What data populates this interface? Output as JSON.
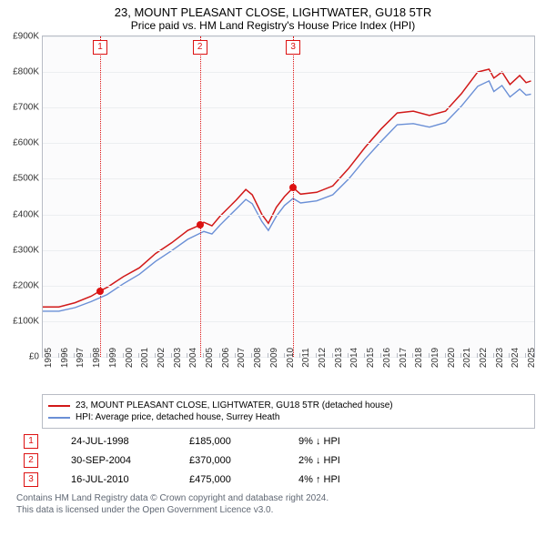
{
  "title": "23, MOUNT PLEASANT CLOSE, LIGHTWATER, GU18 5TR",
  "subtitle": "Price paid vs. HM Land Registry's House Price Index (HPI)",
  "chart": {
    "type": "line",
    "xlim": [
      1995,
      2025.5
    ],
    "ylim": [
      0,
      900000
    ],
    "ytick_step": 100000,
    "ytick_fmt_prefix": "£",
    "ytick_fmt_suffix": "K",
    "ytick_zero": "£0",
    "xticks": [
      1995,
      1996,
      1997,
      1998,
      1999,
      2000,
      2001,
      2002,
      2003,
      2004,
      2005,
      2006,
      2007,
      2008,
      2009,
      2010,
      2011,
      2012,
      2013,
      2014,
      2015,
      2016,
      2017,
      2018,
      2019,
      2020,
      2021,
      2022,
      2023,
      2024,
      2025
    ],
    "background_color": "#fbfbfc",
    "grid_color": "#eceef1",
    "border_color": "#b8bcc5",
    "series": [
      {
        "label": "23, MOUNT PLEASANT CLOSE, LIGHTWATER, GU18 5TR (detached house)",
        "color": "#d11919",
        "width": 1.5,
        "data": [
          [
            1995.0,
            140000
          ],
          [
            1996.0,
            140000
          ],
          [
            1997.0,
            152000
          ],
          [
            1998.0,
            170000
          ],
          [
            1998.56,
            185000
          ],
          [
            1999.0,
            195000
          ],
          [
            2000.0,
            225000
          ],
          [
            2001.0,
            250000
          ],
          [
            2002.0,
            290000
          ],
          [
            2003.0,
            320000
          ],
          [
            2004.0,
            355000
          ],
          [
            2004.75,
            370000
          ],
          [
            2005.0,
            378000
          ],
          [
            2005.5,
            368000
          ],
          [
            2006.0,
            395000
          ],
          [
            2007.0,
            440000
          ],
          [
            2007.6,
            470000
          ],
          [
            2008.0,
            455000
          ],
          [
            2008.6,
            400000
          ],
          [
            2009.0,
            375000
          ],
          [
            2009.5,
            420000
          ],
          [
            2010.0,
            450000
          ],
          [
            2010.54,
            475000
          ],
          [
            2011.0,
            457000
          ],
          [
            2012.0,
            462000
          ],
          [
            2013.0,
            480000
          ],
          [
            2014.0,
            530000
          ],
          [
            2015.0,
            588000
          ],
          [
            2016.0,
            640000
          ],
          [
            2017.0,
            685000
          ],
          [
            2018.0,
            690000
          ],
          [
            2019.0,
            678000
          ],
          [
            2020.0,
            690000
          ],
          [
            2021.0,
            740000
          ],
          [
            2022.0,
            800000
          ],
          [
            2022.7,
            808000
          ],
          [
            2023.0,
            783000
          ],
          [
            2023.5,
            800000
          ],
          [
            2024.0,
            765000
          ],
          [
            2024.6,
            790000
          ],
          [
            2025.0,
            770000
          ],
          [
            2025.3,
            775000
          ]
        ]
      },
      {
        "label": "HPI: Average price, detached house, Surrey Heath",
        "color": "#6a8fd6",
        "width": 1.4,
        "data": [
          [
            1995.0,
            128000
          ],
          [
            1996.0,
            128000
          ],
          [
            1997.0,
            138000
          ],
          [
            1998.0,
            155000
          ],
          [
            1999.0,
            175000
          ],
          [
            2000.0,
            205000
          ],
          [
            2001.0,
            232000
          ],
          [
            2002.0,
            268000
          ],
          [
            2003.0,
            298000
          ],
          [
            2004.0,
            330000
          ],
          [
            2005.0,
            352000
          ],
          [
            2005.5,
            345000
          ],
          [
            2006.0,
            370000
          ],
          [
            2007.0,
            415000
          ],
          [
            2007.6,
            442000
          ],
          [
            2008.0,
            430000
          ],
          [
            2008.6,
            380000
          ],
          [
            2009.0,
            355000
          ],
          [
            2009.5,
            395000
          ],
          [
            2010.0,
            425000
          ],
          [
            2010.54,
            445000
          ],
          [
            2011.0,
            432000
          ],
          [
            2012.0,
            438000
          ],
          [
            2013.0,
            455000
          ],
          [
            2014.0,
            500000
          ],
          [
            2015.0,
            555000
          ],
          [
            2016.0,
            605000
          ],
          [
            2017.0,
            652000
          ],
          [
            2018.0,
            655000
          ],
          [
            2019.0,
            645000
          ],
          [
            2020.0,
            658000
          ],
          [
            2021.0,
            705000
          ],
          [
            2022.0,
            760000
          ],
          [
            2022.7,
            775000
          ],
          [
            2023.0,
            745000
          ],
          [
            2023.5,
            762000
          ],
          [
            2024.0,
            730000
          ],
          [
            2024.6,
            752000
          ],
          [
            2025.0,
            735000
          ],
          [
            2025.3,
            738000
          ]
        ]
      }
    ],
    "markers": [
      {
        "n": "1",
        "x": 1998.56,
        "y": 185000
      },
      {
        "n": "2",
        "x": 2004.75,
        "y": 370000
      },
      {
        "n": "3",
        "x": 2010.54,
        "y": 475000
      }
    ],
    "marker_color": "#d11919"
  },
  "legend": [
    {
      "color": "#d11919",
      "label": "23, MOUNT PLEASANT CLOSE, LIGHTWATER, GU18 5TR (detached house)"
    },
    {
      "color": "#6a8fd6",
      "label": "HPI: Average price, detached house, Surrey Heath"
    }
  ],
  "events": [
    {
      "n": "1",
      "date": "24-JUL-1998",
      "price": "£185,000",
      "delta": "9% ↓ HPI"
    },
    {
      "n": "2",
      "date": "30-SEP-2004",
      "price": "£370,000",
      "delta": "2% ↓ HPI"
    },
    {
      "n": "3",
      "date": "16-JUL-2010",
      "price": "£475,000",
      "delta": "4% ↑ HPI"
    }
  ],
  "license_l1": "Contains HM Land Registry data © Crown copyright and database right 2024.",
  "license_l2": "This data is licensed under the Open Government Licence v3.0."
}
